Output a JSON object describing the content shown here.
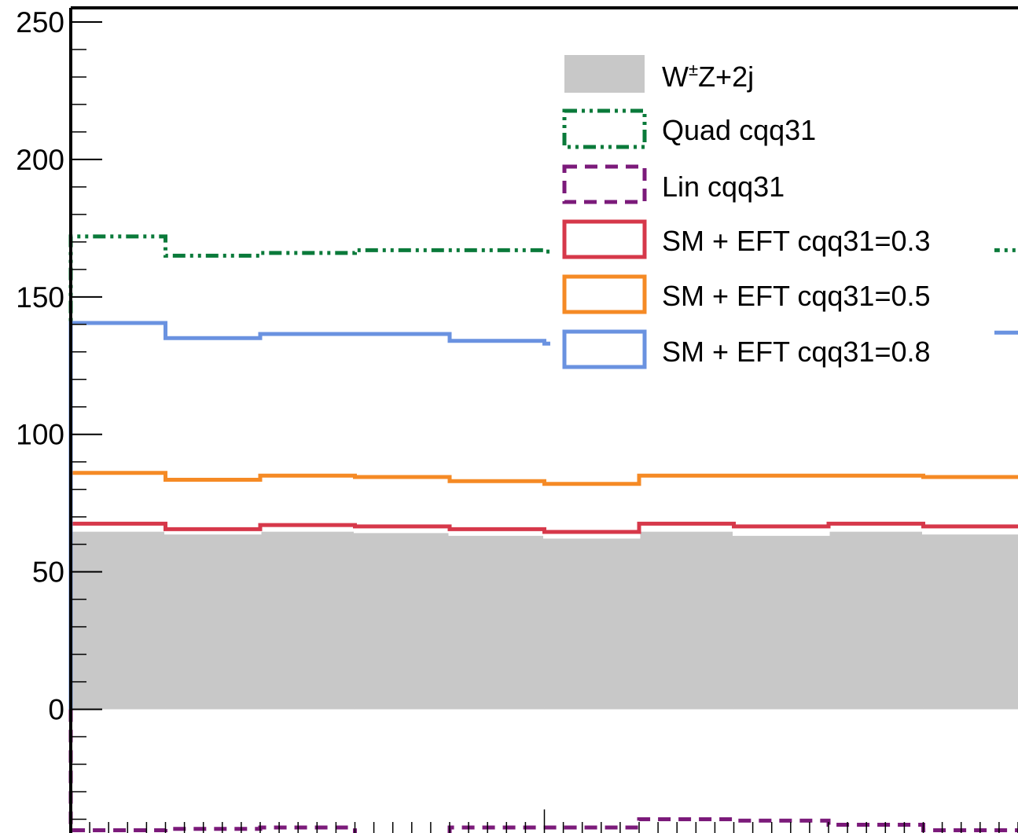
{
  "chart_data": {
    "type": "line",
    "title": "",
    "xlabel": "",
    "ylabel": "",
    "ylim": [
      -45,
      258
    ],
    "yticks": [
      0,
      50,
      100,
      150,
      200,
      250
    ],
    "y_tick_labels": [
      "0",
      "50",
      "100",
      "150",
      "200",
      "250"
    ],
    "bin_edges": [
      0,
      1,
      2,
      3,
      4,
      5,
      6,
      7,
      8,
      9,
      10
    ],
    "legend_position": "top-right",
    "series": [
      {
        "name": "W±Z+2j",
        "style": "filled",
        "color": "#c8c8c8",
        "values": [
          65,
          64,
          65,
          64.5,
          63.5,
          62.5,
          65,
          63.5,
          65,
          64
        ]
      },
      {
        "name": "Quad cqq31",
        "style": "dash-dot-dot",
        "color": "#0a7a3a",
        "values": [
          172,
          165,
          166,
          167,
          167,
          166.5,
          166.5,
          166,
          166,
          167
        ]
      },
      {
        "name": "Lin cqq31",
        "style": "dashed",
        "color": "#7b1a7a",
        "values": [
          -44,
          -43.5,
          -43,
          -46,
          -43,
          -43,
          -40,
          -40.5,
          -42,
          -44
        ]
      },
      {
        "name": "SM + EFT cqq31=0.3",
        "style": "solid",
        "color": "#d6384a",
        "values": [
          67.5,
          65.5,
          67,
          66.5,
          65.5,
          64.5,
          67.5,
          66.5,
          67.5,
          66.5
        ]
      },
      {
        "name": "SM + EFT cqq31=0.5",
        "style": "solid",
        "color": "#f58a25",
        "values": [
          86,
          83.5,
          85,
          84.5,
          83,
          82,
          85,
          85,
          85,
          84.5
        ]
      },
      {
        "name": "SM + EFT cqq31=0.8",
        "style": "solid",
        "color": "#6a92e0",
        "values": [
          140.5,
          135,
          136.5,
          136.5,
          134,
          133,
          137,
          136,
          136,
          137
        ]
      }
    ],
    "legend": {
      "entries": [
        {
          "label": "W±Z+2j",
          "base": "W",
          "sup": "±",
          "rest": "Z+2j"
        },
        {
          "label": "Quad cqq31"
        },
        {
          "label": "Lin cqq31"
        },
        {
          "label": "SM + EFT cqq31=0.3"
        },
        {
          "label": "SM + EFT cqq31=0.5"
        },
        {
          "label": "SM + EFT cqq31=0.8"
        }
      ]
    }
  }
}
